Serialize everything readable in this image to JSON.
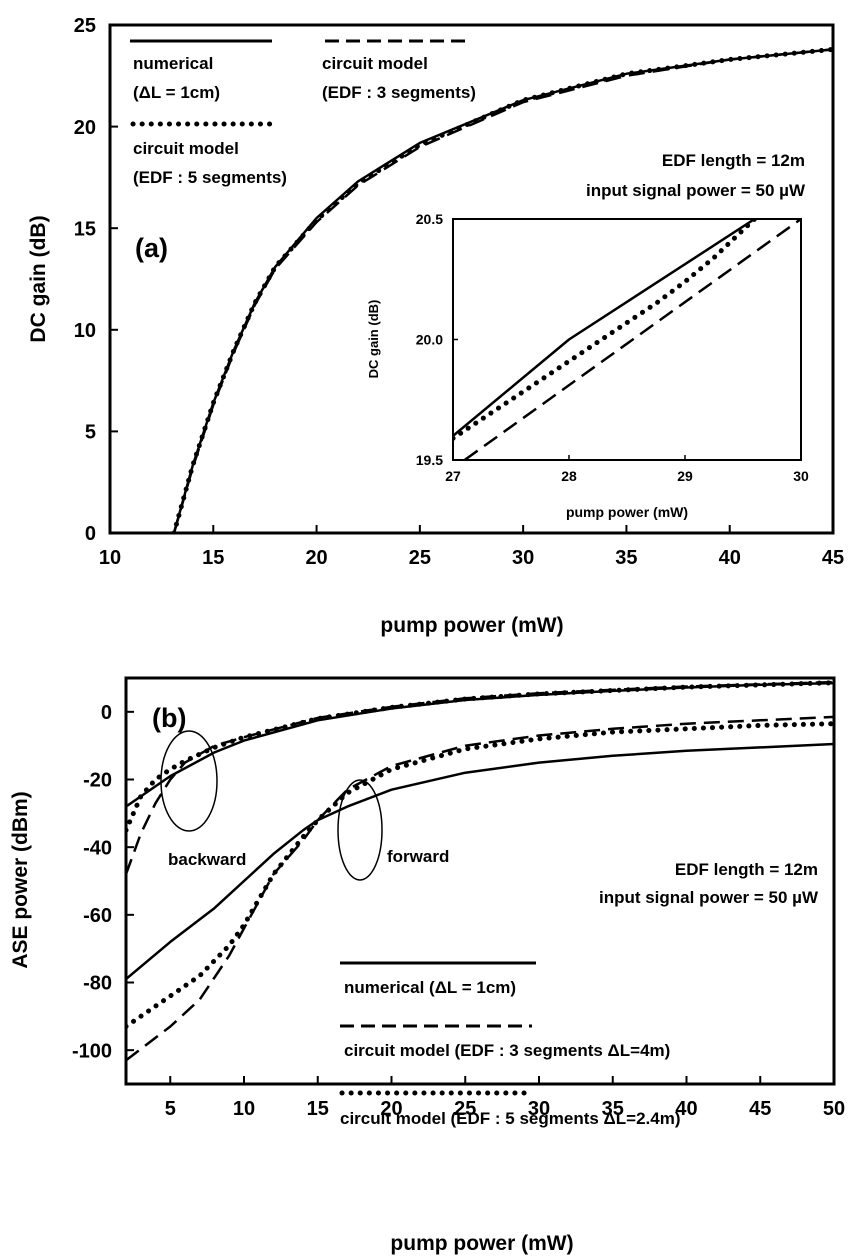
{
  "chart_data": [
    {
      "panel": "a",
      "type": "line",
      "panel_label": "(a)",
      "xlabel": "pump power (mW)",
      "ylabel": "DC gain (dB)",
      "xlim": [
        10,
        45
      ],
      "ylim": [
        0,
        25
      ],
      "xticks": [
        "10",
        "15",
        "20",
        "25",
        "30",
        "35",
        "40",
        "45"
      ],
      "yticks": [
        "0",
        "5",
        "10",
        "15",
        "20",
        "25"
      ],
      "annotations": [
        "EDF length = 12m",
        "input signal power = 50 µW"
      ],
      "legend": [
        {
          "style": "solid",
          "lines": [
            "numerical",
            "(ΔL = 1cm)"
          ]
        },
        {
          "style": "dashed",
          "lines": [
            "circuit model",
            "(EDF : 3 segments)"
          ]
        },
        {
          "style": "dotted",
          "lines": [
            "circuit model",
            "(EDF : 5 segments)"
          ]
        }
      ],
      "series": [
        {
          "style": "solid",
          "x": [
            13.1,
            14,
            15,
            16,
            17,
            18,
            20,
            22,
            25,
            30,
            35,
            40,
            45
          ],
          "y": [
            0,
            3.3,
            6.4,
            9.0,
            11.3,
            13.1,
            15.5,
            17.3,
            19.2,
            21.3,
            22.6,
            23.3,
            23.8
          ]
        },
        {
          "style": "dashed",
          "x": [
            13.1,
            14,
            15,
            16,
            17,
            18,
            20,
            22,
            25,
            30,
            35,
            40,
            45
          ],
          "y": [
            0,
            3.2,
            6.3,
            8.9,
            11.2,
            13.0,
            15.3,
            17.1,
            19.0,
            21.2,
            22.5,
            23.3,
            23.8
          ]
        },
        {
          "style": "dotted",
          "x": [
            13.1,
            14,
            15,
            16,
            17,
            18,
            20,
            22,
            25,
            30,
            35,
            40,
            45
          ],
          "y": [
            0,
            3.3,
            6.4,
            9.0,
            11.3,
            13.1,
            15.4,
            17.2,
            19.1,
            21.3,
            22.6,
            23.3,
            23.8
          ]
        }
      ],
      "inset": {
        "xlabel": "pump power (mW)",
        "ylabel": "DC gain (dB)",
        "xlim": [
          27,
          30
        ],
        "ylim": [
          19.5,
          20.5
        ],
        "xticks": [
          "27",
          "28",
          "29",
          "30"
        ],
        "yticks": [
          "19.5",
          "20.0",
          "20.5"
        ],
        "series": [
          {
            "style": "solid",
            "x": [
              27,
              28,
              29.6
            ],
            "y": [
              19.6,
              20.0,
              20.5
            ]
          },
          {
            "style": "dashed",
            "x": [
              27.1,
              30
            ],
            "y": [
              19.5,
              20.5
            ]
          },
          {
            "style": "dotted",
            "x": [
              27,
              27.25,
              27.5,
              27.75,
              28,
              28.25,
              28.5,
              28.75,
              29,
              29.25,
              29.6
            ],
            "y": [
              19.59,
              19.67,
              19.75,
              19.83,
              19.91,
              19.99,
              20.07,
              20.15,
              20.24,
              20.34,
              20.5
            ]
          }
        ]
      }
    },
    {
      "panel": "b",
      "type": "line",
      "panel_label": "(b)",
      "xlabel": "pump power (mW)",
      "ylabel": "ASE power (dBm)",
      "xlim": [
        2,
        50
      ],
      "ylim": [
        -110,
        10
      ],
      "xticks": [
        "5",
        "10",
        "15",
        "20",
        "25",
        "30",
        "35",
        "40",
        "45",
        "50"
      ],
      "yticks": [
        "0",
        "-20",
        "-40",
        "-60",
        "-80",
        "-100"
      ],
      "annotations": [
        "EDF length = 12m",
        "input signal power = 50 µW",
        "backward",
        "forward"
      ],
      "legend": [
        {
          "style": "solid",
          "lines": [
            "numerical (ΔL = 1cm)"
          ]
        },
        {
          "style": "dashed",
          "lines": [
            "circuit model (EDF : 3 segments ΔL=4m)"
          ]
        },
        {
          "style": "dotted",
          "lines": [
            "circuit model (EDF : 5 segments ΔL=2.4m)"
          ]
        }
      ],
      "series": [
        {
          "style": "solid",
          "group": "backward",
          "x": [
            2,
            5,
            8,
            10,
            15,
            20,
            25,
            30,
            35,
            40,
            45,
            50
          ],
          "y": [
            -28,
            -19,
            -12,
            -8.5,
            -2.5,
            1,
            3.5,
            5,
            6.2,
            7.2,
            8,
            8.5
          ]
        },
        {
          "style": "dashed",
          "group": "backward",
          "x": [
            2,
            3,
            4,
            5,
            6,
            7,
            8,
            10,
            15,
            20,
            25,
            30,
            40,
            50
          ],
          "y": [
            -48,
            -36,
            -27,
            -20,
            -15,
            -12.5,
            -10,
            -7.5,
            -1.8,
            1.5,
            4,
            5.5,
            7.5,
            8.8
          ]
        },
        {
          "style": "dotted",
          "group": "backward",
          "x": [
            2,
            3,
            4,
            5,
            6,
            8,
            10,
            15,
            20,
            25,
            30,
            40,
            50
          ],
          "y": [
            -35,
            -25,
            -20,
            -17,
            -14.5,
            -10.5,
            -7.5,
            -2,
            1.3,
            3.8,
            5.3,
            7.3,
            8.6
          ]
        },
        {
          "style": "solid",
          "group": "forward",
          "x": [
            2,
            5,
            8,
            10,
            12,
            14,
            15,
            17,
            20,
            25,
            30,
            35,
            40,
            45,
            50
          ],
          "y": [
            -79,
            -68,
            -58,
            -50,
            -42,
            -35,
            -32,
            -28,
            -23,
            -18,
            -15,
            -13,
            -11.5,
            -10.5,
            -9.5
          ]
        },
        {
          "style": "dashed",
          "group": "forward",
          "x": [
            2,
            5,
            7,
            9,
            10,
            12,
            14,
            15,
            17,
            20,
            25,
            30,
            35,
            40,
            45,
            50
          ],
          "y": [
            -103,
            -93,
            -85,
            -72,
            -64,
            -48,
            -38,
            -32,
            -23,
            -16,
            -10,
            -7,
            -5,
            -3.5,
            -2.5,
            -1.5
          ]
        },
        {
          "style": "dotted",
          "group": "forward",
          "x": [
            2,
            5,
            7,
            9,
            10,
            12,
            14,
            15,
            17,
            20,
            25,
            30,
            35,
            40,
            45,
            50
          ],
          "y": [
            -93,
            -84,
            -78,
            -69,
            -63,
            -48,
            -37,
            -32,
            -24,
            -17,
            -11,
            -8,
            -6,
            -5,
            -4,
            -3.5
          ]
        }
      ]
    }
  ]
}
